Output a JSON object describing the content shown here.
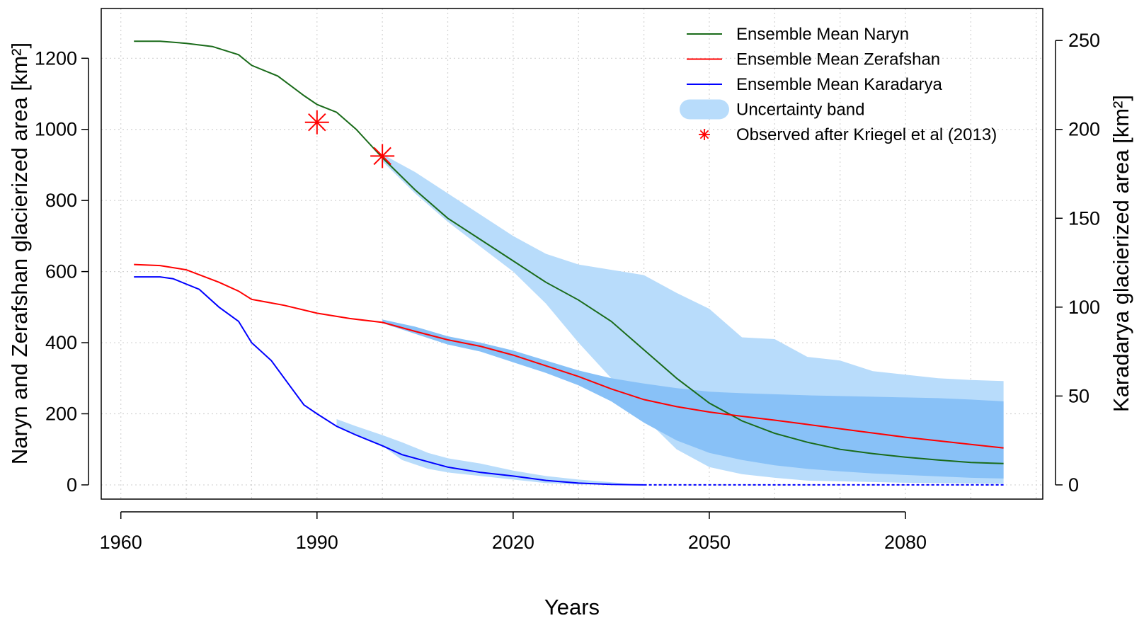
{
  "chart_data": {
    "type": "line",
    "xlabel": "Years",
    "ylabel_left": "Naryn and Zerafshan glacierized area [km²]",
    "ylabel_right": "Karadarya glacierized area [km²]",
    "xlim": [
      1957,
      2101
    ],
    "ylim_left": [
      -40,
      1340
    ],
    "ylim_right": [
      -8,
      268
    ],
    "x_ticks": [
      1960,
      1990,
      2020,
      2050,
      2080
    ],
    "y_ticks_left": [
      0,
      200,
      400,
      600,
      800,
      1000,
      1200
    ],
    "y_ticks_right": [
      0,
      50,
      100,
      150,
      200,
      250
    ],
    "grid": true,
    "legend_position": "top-right",
    "colors": {
      "naryn": "#1a6b1a",
      "zerafshan": "#ff0000",
      "karadarya": "#0000ff",
      "band_light": "#b8dcfb",
      "band_dark": "#88c1f7",
      "observed": "#ff0000"
    },
    "legend": [
      {
        "key": "naryn",
        "label": "Ensemble Mean Naryn",
        "kind": "line"
      },
      {
        "key": "zerafshan",
        "label": "Ensemble Mean Zerafshan",
        "kind": "line"
      },
      {
        "key": "karadarya",
        "label": "Ensemble Mean Karadarya",
        "kind": "line"
      },
      {
        "key": "band",
        "label": "Uncertainty band",
        "kind": "band"
      },
      {
        "key": "observed",
        "label": "Observed after Kriegel et al (2013)",
        "kind": "star"
      }
    ],
    "series": [
      {
        "key": "naryn",
        "axis": "left",
        "x": [
          1962,
          1966,
          1970,
          1974,
          1978,
          1980,
          1984,
          1988,
          1990,
          1993,
          1996,
          2000,
          2005,
          2010,
          2015,
          2020,
          2025,
          2030,
          2035,
          2040,
          2045,
          2050,
          2055,
          2060,
          2065,
          2070,
          2075,
          2080,
          2085,
          2090,
          2095
        ],
        "values": [
          1248,
          1248,
          1242,
          1233,
          1210,
          1180,
          1150,
          1095,
          1070,
          1048,
          1000,
          920,
          830,
          750,
          690,
          630,
          570,
          520,
          460,
          380,
          300,
          230,
          180,
          145,
          120,
          100,
          88,
          78,
          70,
          63,
          60
        ]
      },
      {
        "key": "zerafshan",
        "axis": "left",
        "x": [
          1962,
          1966,
          1970,
          1975,
          1978,
          1980,
          1985,
          1990,
          1995,
          2000,
          2005,
          2010,
          2015,
          2020,
          2025,
          2030,
          2035,
          2040,
          2045,
          2050,
          2055,
          2060,
          2065,
          2070,
          2075,
          2080,
          2085,
          2090,
          2095
        ],
        "values": [
          620,
          617,
          605,
          570,
          545,
          522,
          505,
          483,
          468,
          457,
          432,
          408,
          390,
          365,
          335,
          305,
          270,
          240,
          220,
          205,
          193,
          182,
          170,
          158,
          146,
          134,
          124,
          114,
          104
        ]
      },
      {
        "key": "karadarya",
        "axis": "right",
        "x": [
          1962,
          1966,
          1968,
          1972,
          1975,
          1978,
          1980,
          1983,
          1986,
          1988,
          1990,
          1993,
          1996,
          2000,
          2003,
          2007,
          2010,
          2015,
          2020,
          2025,
          2030,
          2035,
          2040,
          2050,
          2060,
          2070,
          2080,
          2095
        ],
        "values": [
          117,
          117,
          116,
          110,
          100,
          92,
          80,
          70,
          55,
          45,
          40,
          33,
          28,
          22,
          17,
          13,
          10,
          7,
          5,
          2.5,
          1,
          0.3,
          0,
          0,
          0,
          0,
          0,
          0
        ]
      }
    ],
    "bands": [
      {
        "key": "naryn_band",
        "axis": "left",
        "shade": "light",
        "x": [
          2000,
          2005,
          2010,
          2015,
          2020,
          2025,
          2030,
          2035,
          2040,
          2045,
          2050,
          2055,
          2060,
          2065,
          2070,
          2075,
          2080,
          2085,
          2090,
          2095
        ],
        "upper": [
          930,
          880,
          820,
          760,
          700,
          650,
          620,
          605,
          590,
          540,
          495,
          415,
          410,
          360,
          350,
          320,
          310,
          300,
          295,
          292
        ],
        "lower": [
          910,
          820,
          740,
          670,
          600,
          510,
          400,
          300,
          190,
          100,
          50,
          30,
          20,
          12,
          10,
          8,
          6,
          5,
          4,
          3
        ]
      },
      {
        "key": "zerafshan_band",
        "axis": "left",
        "shade": "dark",
        "x": [
          2000,
          2005,
          2010,
          2015,
          2020,
          2025,
          2030,
          2035,
          2040,
          2045,
          2050,
          2055,
          2060,
          2065,
          2070,
          2075,
          2080,
          2085,
          2090,
          2095
        ],
        "upper": [
          465,
          445,
          418,
          400,
          378,
          350,
          322,
          300,
          285,
          272,
          262,
          258,
          255,
          252,
          250,
          248,
          246,
          244,
          240,
          235
        ],
        "lower": [
          455,
          425,
          395,
          375,
          345,
          315,
          280,
          235,
          175,
          125,
          90,
          70,
          55,
          45,
          38,
          32,
          28,
          24,
          20,
          18
        ]
      },
      {
        "key": "karadarya_band",
        "axis": "right",
        "shade": "light",
        "x": [
          1993,
          1996,
          2000,
          2003,
          2007,
          2010,
          2015,
          2020,
          2025,
          2030,
          2035,
          2038
        ],
        "upper": [
          37,
          33,
          28,
          24,
          18,
          15,
          12,
          8,
          5,
          3,
          1.5,
          0.5
        ],
        "lower": [
          33,
          28,
          22,
          14,
          9,
          7,
          5,
          3,
          1,
          0.3,
          0,
          0
        ]
      }
    ],
    "observed": [
      {
        "x": 1990,
        "y": 1020
      },
      {
        "x": 2000,
        "y": 925
      }
    ]
  }
}
